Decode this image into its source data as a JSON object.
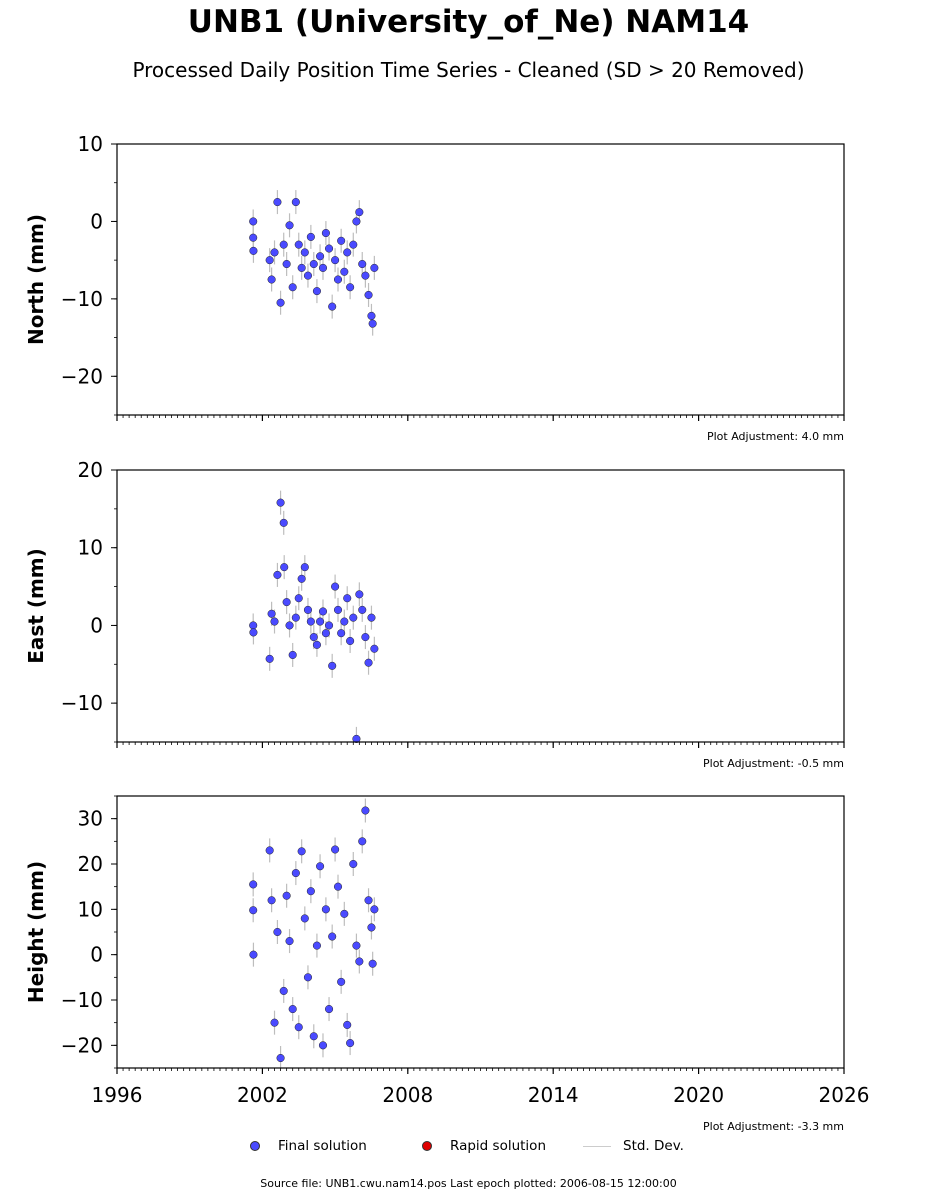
{
  "title": "UNB1 (University_of_Ne) NAM14",
  "subtitle": "Processed Daily Position Time Series - Cleaned (SD > 20 Removed)",
  "footer": "Source file: UNB1.cwu.nam14.pos  Last epoch plotted: 2006-08-15 12:00:00",
  "legend": {
    "final": "Final solution",
    "rapid": "Rapid solution",
    "std": "Std. Dev."
  },
  "colors": {
    "final": "#4a4aff",
    "rapid": "#e00000",
    "std": "#bdbdbd"
  },
  "chart_data": [
    {
      "type": "scatter",
      "ylabel": "North (mm)",
      "xlim": [
        1996,
        2026
      ],
      "ylim": [
        -25,
        10
      ],
      "yticks": [
        -20,
        -10,
        0,
        10
      ],
      "xticks": [
        1996,
        2002,
        2008,
        2014,
        2020,
        2026
      ],
      "show_xtick_labels": false,
      "adjustment": "Plot Adjustment: 4.0 mm",
      "series": [
        {
          "x": [
            2001.62,
            2001.62,
            2001.63,
            2002.3,
            2002.38,
            2002.5,
            2002.62,
            2002.75,
            2002.88,
            2003.0,
            2003.12,
            2003.25,
            2003.38,
            2003.5,
            2003.62,
            2003.75,
            2003.88,
            2004.0,
            2004.12,
            2004.25,
            2004.38,
            2004.5,
            2004.62,
            2004.75,
            2004.88,
            2005.0,
            2005.12,
            2005.25,
            2005.38,
            2005.5,
            2005.62,
            2005.75,
            2005.88,
            2006.0,
            2006.12,
            2006.25,
            2006.38,
            2006.5,
            2006.55,
            2006.62
          ],
          "y": [
            0.0,
            -2.1,
            -3.8,
            -5.0,
            -7.5,
            -4.0,
            2.5,
            -10.5,
            -3.0,
            -5.5,
            -0.5,
            -8.5,
            2.5,
            -3.0,
            -6.0,
            -4.0,
            -7.0,
            -2.0,
            -5.5,
            -9.0,
            -4.5,
            -6.0,
            -1.5,
            -3.5,
            -11.0,
            -5.0,
            -7.5,
            -2.5,
            -6.5,
            -4.0,
            -8.5,
            -3.0,
            0.0,
            1.2,
            -5.5,
            -7.0,
            -9.5,
            -12.2,
            -13.2,
            -6.0
          ]
        }
      ]
    },
    {
      "type": "scatter",
      "ylabel": "East (mm)",
      "xlim": [
        1996,
        2026
      ],
      "ylim": [
        -15,
        20
      ],
      "yticks": [
        -10,
        0,
        10,
        20
      ],
      "xticks": [
        1996,
        2002,
        2008,
        2014,
        2020,
        2026
      ],
      "show_xtick_labels": false,
      "adjustment": "Plot Adjustment: -0.5 mm",
      "series": [
        {
          "x": [
            2001.62,
            2001.63,
            2002.3,
            2002.38,
            2002.5,
            2002.62,
            2002.75,
            2002.88,
            2002.9,
            2003.0,
            2003.12,
            2003.25,
            2003.38,
            2003.5,
            2003.62,
            2003.75,
            2003.88,
            2004.0,
            2004.12,
            2004.25,
            2004.38,
            2004.5,
            2004.62,
            2004.75,
            2004.88,
            2005.0,
            2005.12,
            2005.25,
            2005.38,
            2005.5,
            2005.62,
            2005.75,
            2005.88,
            2006.0,
            2006.12,
            2006.25,
            2006.38,
            2006.5,
            2006.62
          ],
          "y": [
            0.0,
            -0.9,
            -4.3,
            1.5,
            0.5,
            6.5,
            15.8,
            13.2,
            7.5,
            3.0,
            0.0,
            -3.8,
            1.0,
            3.5,
            6.0,
            7.5,
            2.0,
            0.5,
            -1.5,
            -2.5,
            0.5,
            1.8,
            -1.0,
            0.0,
            -5.2,
            5.0,
            2.0,
            -1.0,
            0.5,
            3.5,
            -2.0,
            1.0,
            -14.6,
            4.0,
            2.0,
            -1.5,
            -4.8,
            1.0,
            -3.0
          ]
        }
      ]
    },
    {
      "type": "scatter",
      "ylabel": "Height (mm)",
      "xlim": [
        1996,
        2026
      ],
      "ylim": [
        -25,
        35
      ],
      "yticks": [
        -20,
        -10,
        0,
        10,
        20,
        30
      ],
      "xticks": [
        1996,
        2002,
        2008,
        2014,
        2020,
        2026
      ],
      "show_xtick_labels": true,
      "adjustment": "Plot Adjustment: -3.3 mm",
      "series": [
        {
          "x": [
            2001.62,
            2001.62,
            2001.63,
            2002.3,
            2002.38,
            2002.5,
            2002.62,
            2002.75,
            2002.88,
            2003.0,
            2003.12,
            2003.25,
            2003.38,
            2003.5,
            2003.62,
            2003.75,
            2003.88,
            2004.0,
            2004.12,
            2004.25,
            2004.38,
            2004.5,
            2004.62,
            2004.75,
            2004.88,
            2005.0,
            2005.12,
            2005.25,
            2005.38,
            2005.5,
            2005.62,
            2005.75,
            2005.88,
            2006.0,
            2006.12,
            2006.25,
            2006.38,
            2006.5,
            2006.55,
            2006.62
          ],
          "y": [
            15.5,
            9.8,
            0.0,
            23.0,
            12.0,
            -15.0,
            5.0,
            -22.8,
            -8.0,
            13.0,
            3.0,
            -12.0,
            18.0,
            -16.0,
            22.8,
            8.0,
            -5.0,
            14.0,
            -18.0,
            2.0,
            19.5,
            -20.0,
            10.0,
            -12.0,
            4.0,
            23.2,
            15.0,
            -6.0,
            9.0,
            -15.5,
            -19.5,
            20.0,
            2.0,
            -1.5,
            25.0,
            31.8,
            12.0,
            6.0,
            -2.0,
            10.0
          ]
        }
      ]
    }
  ]
}
